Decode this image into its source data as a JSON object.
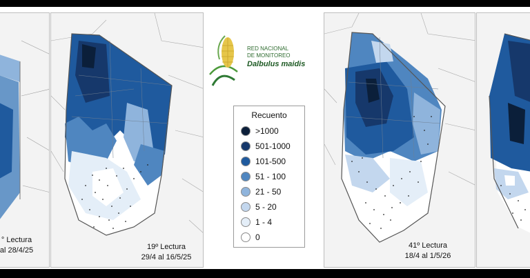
{
  "logo": {
    "line1": "RED NACIONAL",
    "line2": "DE MONITOREO",
    "line3": "Dalbulus maidis"
  },
  "legend": {
    "title": "Recuento",
    "items": [
      {
        "label": ">1000",
        "color": "#0b1f3a"
      },
      {
        "label": "501-1000",
        "color": "#16386b"
      },
      {
        "label": "101-500",
        "color": "#1f5a9e"
      },
      {
        "label": "51 - 100",
        "color": "#4f86c0"
      },
      {
        "label": "21 - 50",
        "color": "#8fb4dc"
      },
      {
        "label": "5 - 20",
        "color": "#c3d7ee"
      },
      {
        "label": "1 - 4",
        "color": "#e4eef8"
      },
      {
        "label": "0",
        "color": "#ffffff"
      }
    ]
  },
  "maps": [
    {
      "line1": "° Lectura",
      "line2": "al 28/4/25"
    },
    {
      "line1": "19º Lectura",
      "line2": "29/4 al 16/5/25"
    },
    {
      "line1": "41º Lectura",
      "line2": "18/4 al 1/5/26"
    },
    {
      "line1": "",
      "line2": ""
    }
  ]
}
